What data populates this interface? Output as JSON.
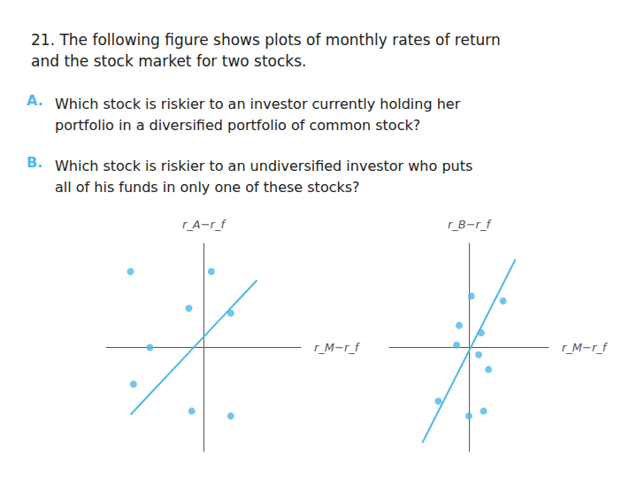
{
  "chart_data": [
    {
      "type": "scatter",
      "title": "21. The following figure shows plots of monthly rates of return\nand the stock market for two stocks.",
      "annotations": [
        {
          "label": "A.",
          "text": "Which stock is riskier to an investor currently holding her\nportfolio in a diversified portfolio of common stock?"
        },
        {
          "label": "B.",
          "text": "Which stock is riskier to an undiversified investor who puts\nall of his funds in only one of these stocks?"
        }
      ],
      "xlabel": "r_M−r_f",
      "ylabel": "r_A−r_f",
      "xlim": [
        -1.0,
        1.0
      ],
      "ylim": [
        -0.85,
        0.85
      ],
      "tick_labels": false,
      "grid": false,
      "series": [
        {
          "type": "scatter",
          "color": "#4db8e8",
          "x": [
            -0.75,
            0.08,
            -0.15,
            0.28,
            -0.55,
            -0.72,
            -0.12,
            0.28
          ],
          "values": [
            0.62,
            0.62,
            0.32,
            0.28,
            0.0,
            -0.3,
            -0.52,
            -0.56
          ]
        },
        {
          "type": "line",
          "color": "#4db8e8",
          "x": [
            -0.75,
            0.55
          ],
          "values": [
            -0.55,
            0.55
          ]
        }
      ]
    },
    {
      "type": "scatter",
      "xlabel": "r_M−r_f",
      "ylabel": "r_B−r_f",
      "xlim": [
        -0.65,
        0.65
      ],
      "ylim": [
        -0.85,
        0.85
      ],
      "tick_labels": false,
      "grid": false,
      "series": [
        {
          "type": "scatter",
          "color": "#4db8e8",
          "x": [
            0.02,
            0.28,
            -0.08,
            0.1,
            -0.1,
            0.08,
            0.16,
            -0.25,
            0.0,
            0.12
          ],
          "values": [
            0.42,
            0.38,
            0.18,
            0.12,
            0.02,
            -0.06,
            -0.18,
            -0.44,
            -0.56,
            -0.52
          ]
        },
        {
          "type": "line",
          "color": "#4db8e8",
          "x": [
            -0.38,
            0.38
          ],
          "values": [
            -0.78,
            0.72
          ]
        }
      ]
    }
  ]
}
